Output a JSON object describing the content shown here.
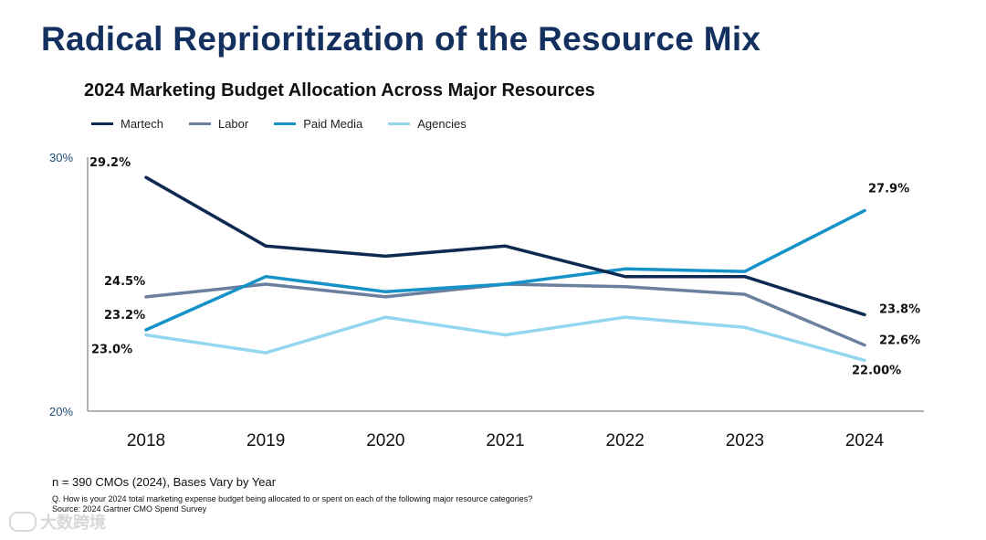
{
  "slide_title": "Radical Reprioritization of the Resource Mix",
  "watermark_text": "大数跨境",
  "footnotes": {
    "sample": "n = 390 CMOs (2024), Bases Vary by Year",
    "question": "Q. How is your 2024 total marketing expense budget being allocated to or spent on each of the following major resource categories?",
    "source": "Source: 2024 Gartner CMO Spend Survey"
  },
  "chart_data": {
    "type": "line",
    "title": "2024 Marketing Budget Allocation Across Major Resources",
    "xlabel": "",
    "ylabel": "",
    "x": [
      "2018",
      "2019",
      "2020",
      "2021",
      "2022",
      "2023",
      "2024"
    ],
    "ylim": [
      20,
      30
    ],
    "ytick_labels": [
      "30%",
      "20%"
    ],
    "grid": false,
    "legend_position": "top-left",
    "series": [
      {
        "name": "Martech",
        "color": "#0f2a52",
        "values": [
          29.2,
          26.5,
          26.1,
          26.5,
          25.3,
          25.3,
          23.8
        ],
        "labels": {
          "0": "29.2%",
          "6": "23.8%"
        }
      },
      {
        "name": "Labor",
        "color": "#6b7f9e",
        "values": [
          24.5,
          25.0,
          24.5,
          25.0,
          24.9,
          24.6,
          22.6
        ],
        "labels": {
          "0": "24.5%",
          "6": "22.6%"
        }
      },
      {
        "name": "Paid Media",
        "color": "#1592c7",
        "values": [
          23.2,
          25.3,
          24.7,
          25.0,
          25.6,
          25.5,
          27.9
        ],
        "labels": {
          "0": "23.2%",
          "6": "27.9%"
        }
      },
      {
        "name": "Agencies",
        "color": "#94d6f0",
        "values": [
          23.0,
          22.3,
          23.7,
          23.0,
          23.7,
          23.3,
          22.0
        ],
        "labels": {
          "0": "23.0%",
          "6": "22.00%"
        }
      }
    ]
  }
}
